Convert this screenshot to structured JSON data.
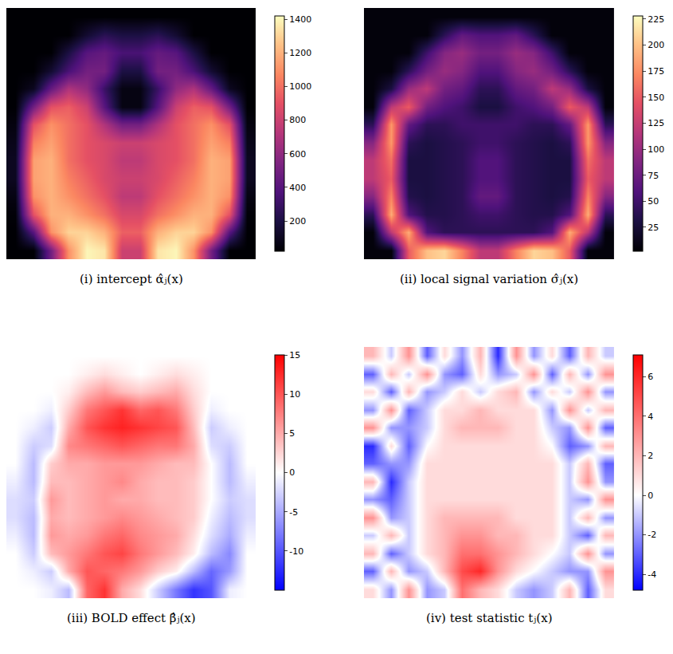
{
  "chart_data": [
    {
      "type": "heatmap",
      "title": "(i) intercept α̂ⱼ(x)",
      "color": "magma",
      "tick_labels": false,
      "colorbar_range": [
        20,
        1420
      ],
      "colorbar_ticks": [
        200,
        400,
        600,
        800,
        1000,
        1200,
        1400
      ],
      "z": [
        [
          20,
          20,
          20,
          20,
          20,
          20,
          20,
          20,
          20,
          20,
          20,
          20,
          20,
          20
        ],
        [
          20,
          20,
          20,
          20,
          150,
          250,
          200,
          200,
          250,
          150,
          20,
          20,
          20,
          20
        ],
        [
          20,
          20,
          20,
          200,
          400,
          450,
          350,
          350,
          450,
          400,
          200,
          20,
          20,
          20
        ],
        [
          20,
          20,
          150,
          350,
          500,
          500,
          200,
          200,
          500,
          500,
          350,
          150,
          20,
          20
        ],
        [
          20,
          100,
          450,
          700,
          600,
          300,
          60,
          60,
          300,
          600,
          700,
          450,
          100,
          20
        ],
        [
          20,
          500,
          900,
          950,
          800,
          400,
          60,
          60,
          400,
          800,
          950,
          900,
          500,
          20
        ],
        [
          50,
          900,
          1100,
          1000,
          900,
          700,
          500,
          500,
          700,
          900,
          1000,
          1100,
          900,
          50
        ],
        [
          80,
          1050,
          1150,
          1000,
          900,
          850,
          800,
          800,
          850,
          900,
          1000,
          1150,
          1050,
          80
        ],
        [
          100,
          1150,
          1200,
          1000,
          900,
          850,
          750,
          750,
          850,
          900,
          1000,
          1200,
          1150,
          100
        ],
        [
          100,
          1150,
          1200,
          1050,
          950,
          850,
          800,
          800,
          850,
          950,
          1050,
          1200,
          1150,
          100
        ],
        [
          60,
          1100,
          1200,
          1100,
          1000,
          900,
          750,
          750,
          900,
          1000,
          1100,
          1200,
          1100,
          60
        ],
        [
          30,
          900,
          1200,
          1200,
          1100,
          1000,
          850,
          850,
          1000,
          1100,
          1200,
          1200,
          900,
          30
        ],
        [
          20,
          400,
          1100,
          1300,
          1300,
          1200,
          950,
          950,
          1200,
          1300,
          1300,
          1100,
          400,
          20
        ],
        [
          20,
          20,
          500,
          1100,
          1400,
          1350,
          800,
          800,
          1350,
          1400,
          1100,
          500,
          20,
          20
        ]
      ]
    },
    {
      "type": "heatmap",
      "title": "(ii) local signal variation σ̂ⱼ(x)",
      "color": "magma",
      "tick_labels": false,
      "colorbar_range": [
        2,
        228
      ],
      "colorbar_ticks": [
        25,
        50,
        75,
        100,
        125,
        150,
        175,
        200,
        225
      ],
      "z": [
        [
          5,
          5,
          5,
          5,
          5,
          5,
          5,
          5,
          5,
          5,
          5,
          5,
          5,
          5
        ],
        [
          5,
          5,
          5,
          5,
          40,
          70,
          60,
          60,
          70,
          40,
          5,
          5,
          5,
          5
        ],
        [
          5,
          5,
          5,
          50,
          90,
          100,
          80,
          80,
          100,
          90,
          50,
          5,
          5,
          5
        ],
        [
          5,
          5,
          40,
          80,
          100,
          90,
          60,
          60,
          90,
          100,
          80,
          40,
          5,
          5
        ],
        [
          5,
          30,
          100,
          120,
          80,
          70,
          40,
          40,
          70,
          80,
          120,
          100,
          30,
          5
        ],
        [
          5,
          120,
          150,
          80,
          60,
          50,
          30,
          30,
          50,
          60,
          80,
          150,
          120,
          5
        ],
        [
          40,
          180,
          70,
          40,
          40,
          50,
          50,
          50,
          50,
          40,
          40,
          70,
          180,
          40
        ],
        [
          90,
          180,
          40,
          30,
          35,
          40,
          50,
          50,
          40,
          35,
          30,
          40,
          180,
          90
        ],
        [
          120,
          160,
          30,
          30,
          35,
          40,
          60,
          60,
          40,
          35,
          30,
          30,
          160,
          120
        ],
        [
          120,
          150,
          30,
          30,
          35,
          40,
          60,
          60,
          40,
          35,
          30,
          30,
          150,
          120
        ],
        [
          90,
          170,
          35,
          30,
          35,
          40,
          70,
          70,
          40,
          35,
          30,
          35,
          170,
          90
        ],
        [
          40,
          190,
          60,
          35,
          35,
          40,
          50,
          50,
          40,
          35,
          35,
          60,
          190,
          40
        ],
        [
          5,
          120,
          190,
          60,
          40,
          40,
          40,
          40,
          40,
          40,
          60,
          190,
          120,
          5
        ],
        [
          5,
          5,
          150,
          200,
          210,
          170,
          120,
          120,
          170,
          210,
          200,
          150,
          5,
          5
        ]
      ]
    },
    {
      "type": "heatmap",
      "title": "(iii) BOLD effect β̂ⱼ(x)",
      "color": "bwr",
      "tick_labels": false,
      "colorbar_range": [
        -15,
        15
      ],
      "colorbar_ticks": [
        -10,
        -5,
        0,
        5,
        10,
        15
      ],
      "z": [
        [
          0,
          0,
          0,
          0,
          0,
          0,
          0,
          0,
          0,
          0,
          0,
          0,
          0,
          0
        ],
        [
          0,
          0,
          0,
          0,
          1,
          2,
          1,
          0,
          1,
          2,
          1,
          0,
          0,
          0
        ],
        [
          0,
          0,
          0,
          1,
          4,
          6,
          4,
          3,
          4,
          5,
          2,
          0,
          0,
          0
        ],
        [
          0,
          0,
          -1,
          3,
          8,
          10,
          12,
          9,
          10,
          8,
          3,
          -1,
          0,
          0
        ],
        [
          0,
          -1,
          -3,
          5,
          10,
          12,
          13,
          12,
          11,
          10,
          4,
          -3,
          -1,
          0
        ],
        [
          0,
          -3,
          -2,
          7,
          8,
          9,
          10,
          9,
          8,
          8,
          5,
          -2,
          -3,
          0
        ],
        [
          0,
          -4,
          3,
          5,
          5,
          6,
          6,
          6,
          5,
          4,
          4,
          0,
          -4,
          0
        ],
        [
          -1,
          -4,
          4,
          4,
          5,
          6,
          7,
          5,
          4,
          4,
          3,
          0,
          -4,
          -1
        ],
        [
          -2,
          -3,
          6,
          4,
          5,
          6,
          5,
          5,
          4,
          4,
          3,
          0,
          -3,
          -2
        ],
        [
          -2,
          -4,
          5,
          4,
          5,
          6,
          7,
          6,
          5,
          4,
          3,
          -1,
          -4,
          -2
        ],
        [
          -1,
          -4,
          6,
          5,
          6,
          8,
          9,
          7,
          6,
          5,
          2,
          -2,
          -5,
          -1
        ],
        [
          0,
          -3,
          4,
          6,
          8,
          10,
          11,
          8,
          6,
          4,
          1,
          -4,
          -7,
          0
        ],
        [
          0,
          -1,
          -3,
          5,
          10,
          9,
          8,
          6,
          3,
          1,
          -4,
          -9,
          -6,
          0
        ],
        [
          0,
          0,
          -1,
          -4,
          9,
          12,
          5,
          2,
          -3,
          -8,
          -12,
          -10,
          -1,
          0
        ]
      ]
    },
    {
      "type": "heatmap",
      "title": "(iv) test statistic tⱼ(x)",
      "color": "bwr",
      "tick_labels": false,
      "colorbar_range": [
        -4.8,
        7.1
      ],
      "colorbar_ticks": [
        -4,
        -2,
        0,
        2,
        4,
        6
      ],
      "z": [
        [
          2,
          -1,
          3,
          -3,
          1,
          -2,
          2,
          -4,
          3,
          -2,
          1,
          -3,
          2,
          -1
        ],
        [
          -3,
          2,
          -1,
          3,
          -2,
          -3,
          1,
          -2,
          -1,
          3,
          -3,
          2,
          -2,
          3
        ],
        [
          1,
          -3,
          2,
          -2,
          -1,
          1,
          -1,
          1,
          2,
          -2,
          1,
          -1,
          3,
          -2
        ],
        [
          -2,
          3,
          -3,
          -1,
          1,
          1,
          2,
          1,
          1,
          1,
          -2,
          3,
          -1,
          2
        ],
        [
          3,
          -2,
          -2,
          -1,
          1,
          2,
          2,
          2,
          1,
          1,
          -1,
          -2,
          3,
          -3
        ],
        [
          -4,
          1,
          -3,
          0,
          1,
          1,
          1,
          1,
          1,
          1,
          0,
          -3,
          -2,
          2
        ],
        [
          -3,
          -2,
          -2,
          1,
          1,
          1,
          1,
          1,
          1,
          1,
          1,
          -1,
          2,
          -3
        ],
        [
          2,
          -4,
          -1,
          1,
          1,
          1,
          1,
          1,
          1,
          1,
          1,
          -1,
          3,
          -2
        ],
        [
          -2,
          -3,
          -1,
          1,
          1,
          1,
          1,
          1,
          1,
          1,
          1,
          -1,
          -2,
          3
        ],
        [
          3,
          -2,
          -1,
          1,
          2,
          2,
          2,
          2,
          1,
          1,
          1,
          -1,
          2,
          -2
        ],
        [
          -1,
          2,
          -1,
          1,
          2,
          3,
          3,
          2,
          2,
          1,
          1,
          -1,
          -3,
          2
        ],
        [
          2,
          -3,
          -1,
          1,
          2,
          4,
          4,
          3,
          2,
          1,
          0,
          -1,
          3,
          -2
        ],
        [
          -3,
          2,
          -2,
          -1,
          2,
          5,
          6,
          3,
          1,
          0,
          -1,
          -2,
          -2,
          3
        ],
        [
          1,
          -2,
          3,
          -2,
          -1,
          4,
          2,
          1,
          -1,
          -2,
          -1,
          2,
          -3,
          1
        ]
      ]
    }
  ]
}
